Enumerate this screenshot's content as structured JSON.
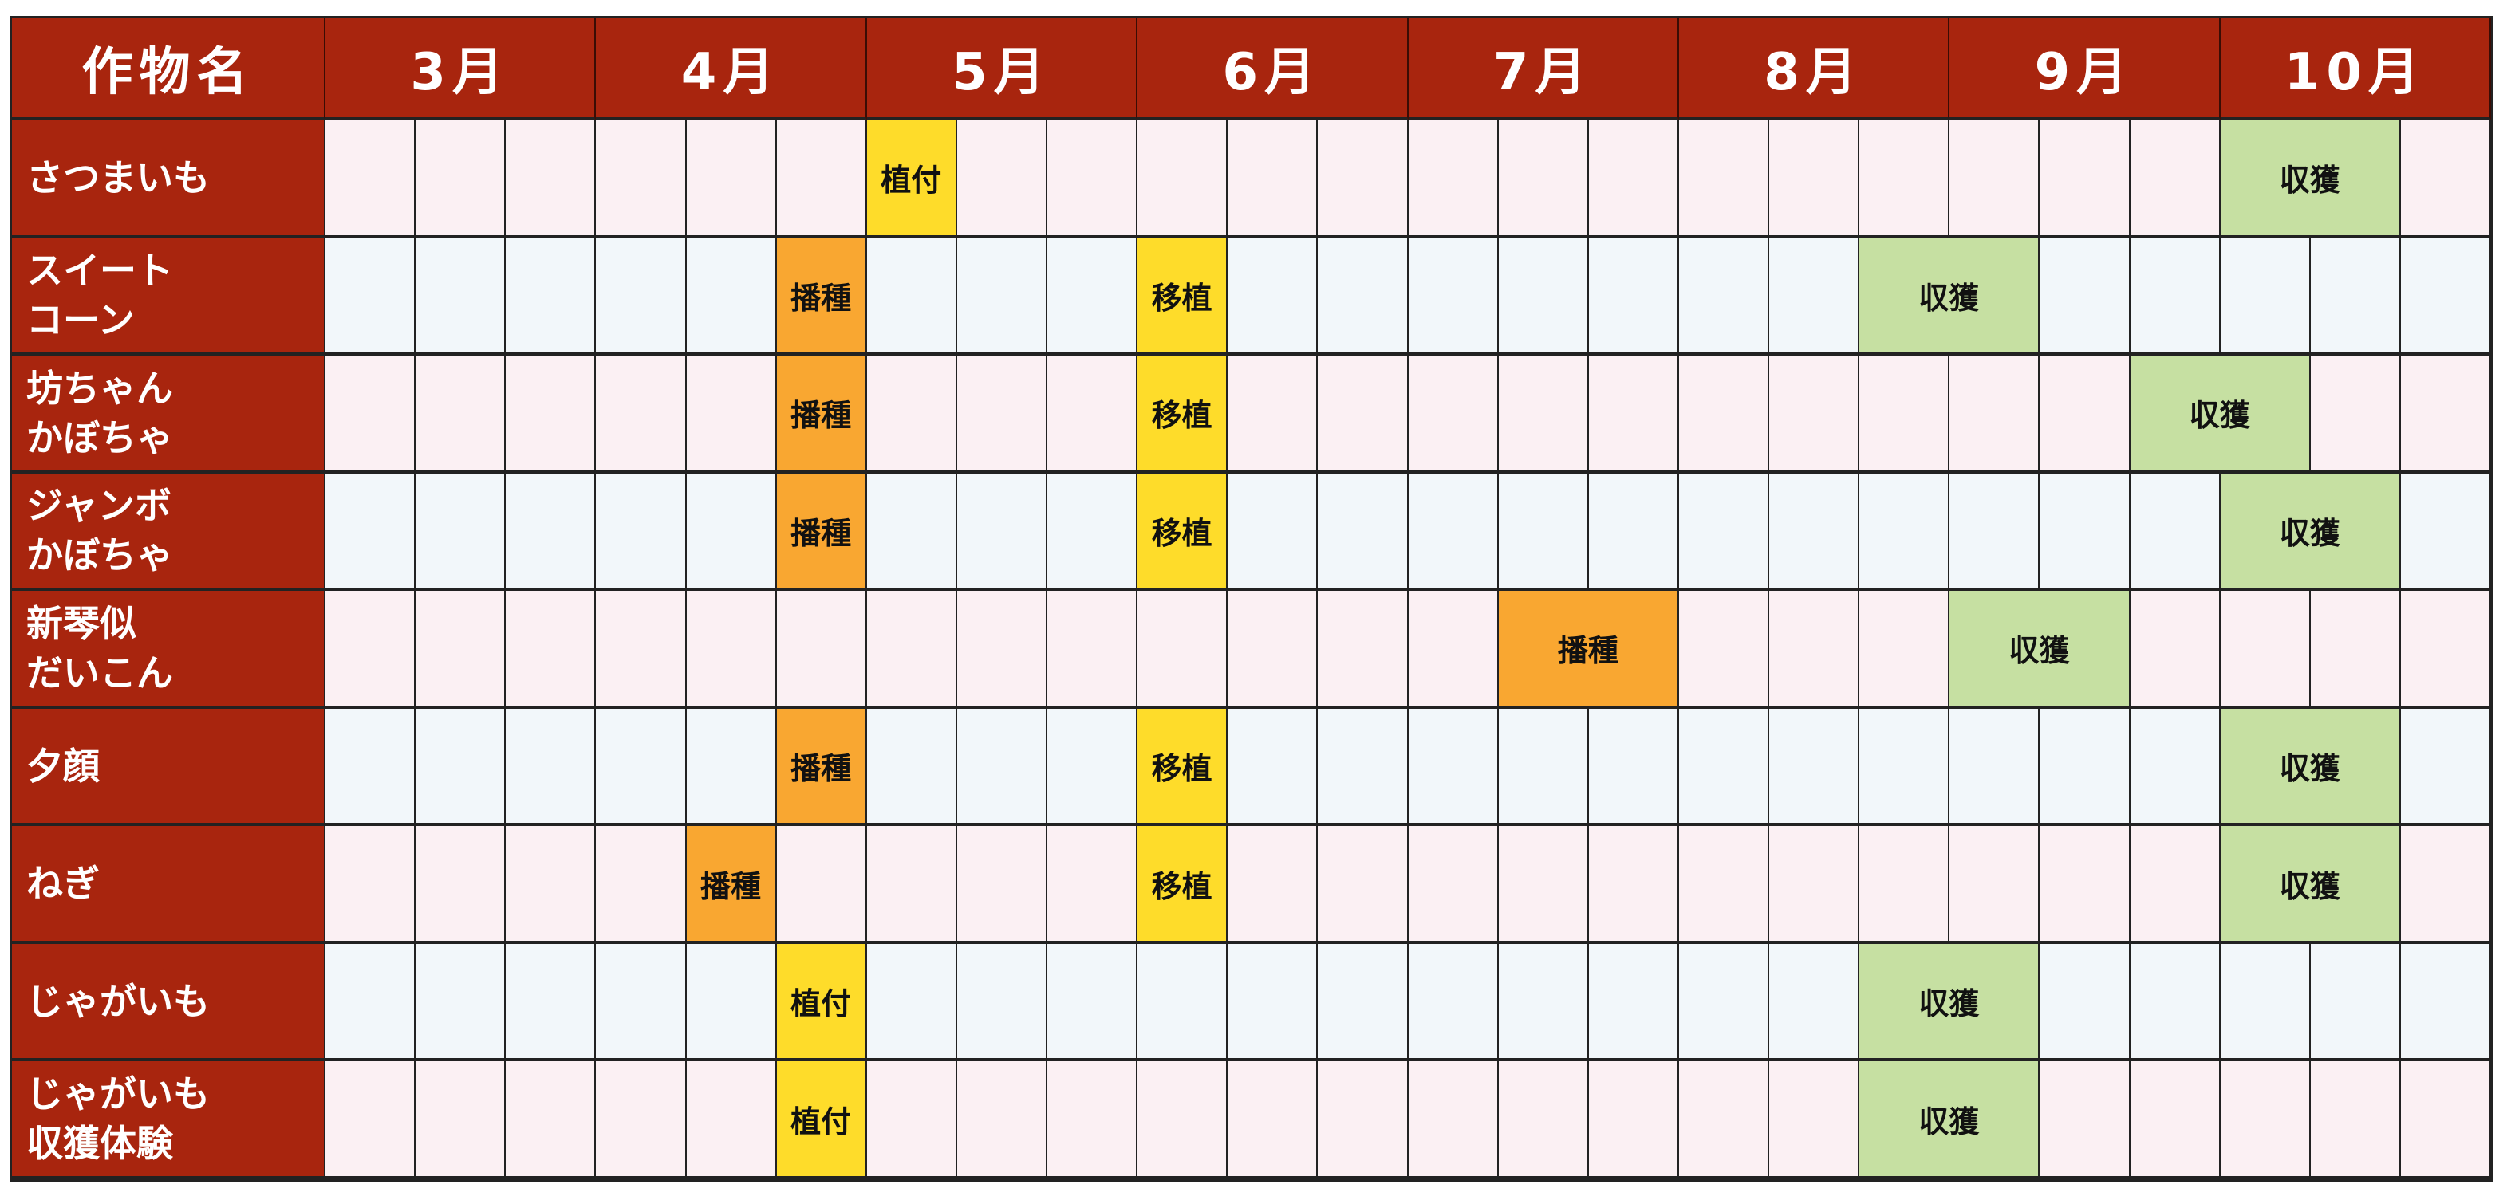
{
  "header": {
    "crop_label": "作物名",
    "months": [
      "3月",
      "4月",
      "5月",
      "6月",
      "7月",
      "8月",
      "9月",
      "10月"
    ]
  },
  "periods_per_month": 3,
  "colors": {
    "header_bg": "#a8250e",
    "植付": "#fedc2a",
    "播種": "#f9a731",
    "移植": "#fedc2a",
    "収獲": "#c6e0a2",
    "row_odd": "#fbf0f3",
    "row_even": "#f2f7fa"
  },
  "crops": [
    {
      "name": "さつまいも",
      "events": [
        {
          "label": "植付",
          "month": "5月",
          "period": 1,
          "span": 1
        },
        {
          "label": "収獲",
          "month": "10月",
          "period": 1,
          "span": 2
        }
      ]
    },
    {
      "name": "スイート\nコーン",
      "events": [
        {
          "label": "播種",
          "month": "4月",
          "period": 3,
          "span": 1
        },
        {
          "label": "移植",
          "month": "6月",
          "period": 1,
          "span": 1
        },
        {
          "label": "収獲",
          "month": "8月",
          "period": 3,
          "span": 2
        }
      ]
    },
    {
      "name": "坊ちゃん\nかぼちゃ",
      "events": [
        {
          "label": "播種",
          "month": "4月",
          "period": 3,
          "span": 1
        },
        {
          "label": "移植",
          "month": "6月",
          "period": 1,
          "span": 1
        },
        {
          "label": "収獲",
          "month": "9月",
          "period": 3,
          "span": 2
        }
      ]
    },
    {
      "name": "ジャンボ\nかぼちゃ",
      "events": [
        {
          "label": "播種",
          "month": "4月",
          "period": 3,
          "span": 1
        },
        {
          "label": "移植",
          "month": "6月",
          "period": 1,
          "span": 1
        },
        {
          "label": "収獲",
          "month": "10月",
          "period": 1,
          "span": 2
        }
      ]
    },
    {
      "name": "新琴似\nだいこん",
      "events": [
        {
          "label": "播種",
          "month": "7月",
          "period": 2,
          "span": 2
        },
        {
          "label": "収獲",
          "month": "9月",
          "period": 1,
          "span": 2
        }
      ]
    },
    {
      "name": "夕顔",
      "events": [
        {
          "label": "播種",
          "month": "4月",
          "period": 3,
          "span": 1
        },
        {
          "label": "移植",
          "month": "6月",
          "period": 1,
          "span": 1
        },
        {
          "label": "収獲",
          "month": "10月",
          "period": 1,
          "span": 2
        }
      ]
    },
    {
      "name": "ねぎ",
      "events": [
        {
          "label": "播種",
          "month": "4月",
          "period": 2,
          "span": 1
        },
        {
          "label": "移植",
          "month": "6月",
          "period": 1,
          "span": 1
        },
        {
          "label": "収獲",
          "month": "10月",
          "period": 1,
          "span": 2
        }
      ]
    },
    {
      "name": "じゃがいも",
      "events": [
        {
          "label": "植付",
          "month": "4月",
          "period": 3,
          "span": 1
        },
        {
          "label": "収獲",
          "month": "8月",
          "period": 3,
          "span": 2
        }
      ]
    },
    {
      "name": "じゃがいも\n収獲体験",
      "events": [
        {
          "label": "植付",
          "month": "4月",
          "period": 3,
          "span": 1
        },
        {
          "label": "収獲",
          "month": "8月",
          "period": 3,
          "span": 2
        }
      ]
    }
  ]
}
